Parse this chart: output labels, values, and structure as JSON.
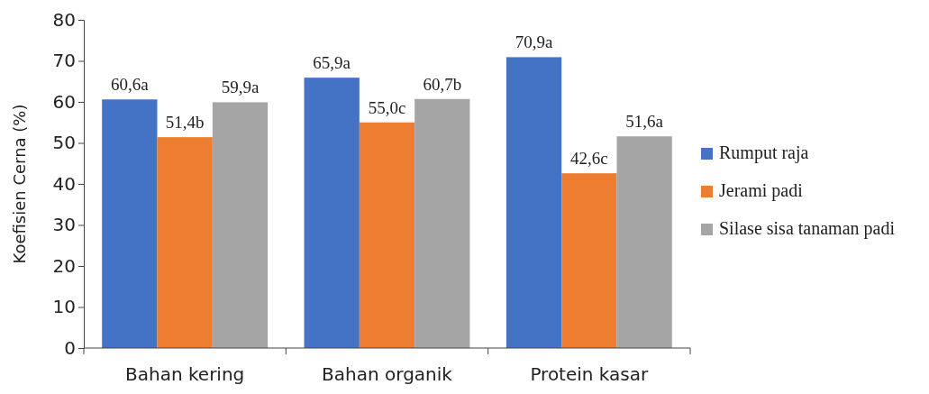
{
  "chart_data": {
    "type": "bar",
    "ylabel": "Koefisien Cerna (%)",
    "categories": [
      "Bahan kering",
      "Bahan organik",
      "Protein kasar"
    ],
    "series": [
      {
        "name": "Rumput raja",
        "color": "#4472c4",
        "values": [
          60.6,
          65.9,
          70.9
        ],
        "value_labels": [
          "60,6a",
          "65,9a",
          "70,9a"
        ]
      },
      {
        "name": "Jerami padi",
        "color": "#ed7d31",
        "values": [
          51.4,
          55.0,
          42.6
        ],
        "value_labels": [
          "51,4b",
          "55,0c",
          "42,6c"
        ]
      },
      {
        "name": "Silase sisa tanaman padi",
        "color": "#a5a5a5",
        "values": [
          59.9,
          60.7,
          51.6
        ],
        "value_labels": [
          "59,9a",
          "60,7b",
          "51,6a"
        ]
      }
    ],
    "ylim": [
      0,
      80
    ],
    "yticks": [
      0,
      10,
      20,
      30,
      40,
      50,
      60,
      70,
      80
    ],
    "grid": false,
    "legend": "right"
  }
}
